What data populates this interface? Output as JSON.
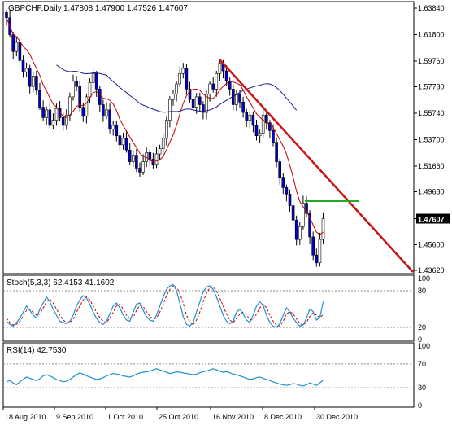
{
  "window": {
    "symbol_timeframe": "GBPCHF,Daily",
    "ohlc": "1.47808 1.47900 1.47526 1.47607"
  },
  "price_panel": {
    "y_ticks": [
      "1.63840",
      "1.61800",
      "1.59760",
      "1.57780",
      "1.55740",
      "1.53700",
      "1.51660",
      "1.49680",
      "1.47607",
      "1.45600",
      "1.43620"
    ],
    "current_price": "1.47607"
  },
  "stoch_panel": {
    "label": "Stoch(5,3,3) 62.4153 41.1602",
    "levels": [
      "100",
      "80",
      "20",
      "0"
    ]
  },
  "rsi_panel": {
    "label": "RSI(14) 42.7530",
    "levels": [
      "100",
      "70",
      "30",
      "0"
    ]
  },
  "x_axis": {
    "labels": [
      "18 Aug 2010",
      "9 Sep 2010",
      "1 Oct 2010",
      "25 Oct 2010",
      "16 Nov 2010",
      "8 Dec 2010",
      "30 Dec 2010"
    ]
  },
  "colors": {
    "up": "#ffffff",
    "down": "#0000c8",
    "wick": "#000000",
    "ma_fast": "#c00000",
    "ma_slow": "#1a1a8c",
    "trendline": "#c81414",
    "hline": "#22aa22",
    "stoch_main": "#1e8fd0",
    "stoch_signal": "#c00000",
    "rsi": "#1e8fd0"
  },
  "chart_data": {
    "type": "candlestick",
    "closes": [
      1.631,
      1.618,
      1.605,
      1.612,
      1.598,
      1.589,
      1.592,
      1.578,
      1.586,
      1.575,
      1.562,
      1.554,
      1.56,
      1.548,
      1.552,
      1.561,
      1.554,
      1.548,
      1.556,
      1.57,
      1.582,
      1.578,
      1.562,
      1.555,
      1.57,
      1.581,
      1.588,
      1.576,
      1.564,
      1.555,
      1.56,
      1.545,
      1.548,
      1.54,
      1.533,
      1.538,
      1.529,
      1.52,
      1.525,
      1.515,
      1.512,
      1.52,
      1.527,
      1.522,
      1.518,
      1.526,
      1.53,
      1.538,
      1.552,
      1.568,
      1.572,
      1.58,
      1.588,
      1.592,
      1.576,
      1.568,
      1.562,
      1.57,
      1.564,
      1.558,
      1.572,
      1.58,
      1.576,
      1.588,
      1.596,
      1.59,
      1.582,
      1.576,
      1.564,
      1.572,
      1.566,
      1.558,
      1.552,
      1.556,
      1.548,
      1.54,
      1.542,
      1.556,
      1.55,
      1.544,
      1.535,
      1.52,
      1.508,
      1.5,
      1.495,
      1.486,
      1.475,
      1.46,
      1.47,
      1.488,
      1.48,
      1.462,
      1.448,
      1.442,
      1.46,
      1.476
    ],
    "stoch_main": [
      30,
      25,
      22,
      28,
      35,
      45,
      55,
      48,
      40,
      35,
      50,
      60,
      70,
      62,
      50,
      40,
      30,
      28,
      26,
      30,
      40,
      55,
      65,
      72,
      68,
      58,
      45,
      35,
      28,
      25,
      30,
      42,
      55,
      60,
      52,
      40,
      32,
      30,
      45,
      58,
      60,
      48,
      38,
      32,
      30,
      40,
      55,
      70,
      82,
      88,
      90,
      80,
      60,
      38,
      25,
      22,
      28,
      45,
      62,
      78,
      86,
      88,
      82,
      70,
      55,
      40,
      30,
      26,
      30,
      45,
      50,
      42,
      32,
      28,
      40,
      55,
      62,
      56,
      40,
      28,
      22,
      20,
      26,
      40,
      52,
      45,
      35,
      28,
      22,
      24,
      35,
      50,
      46,
      32,
      36,
      62
    ],
    "stoch_signal": [
      35,
      28,
      24,
      25,
      30,
      38,
      48,
      50,
      45,
      40,
      42,
      52,
      62,
      66,
      60,
      50,
      40,
      32,
      28,
      28,
      33,
      45,
      55,
      65,
      70,
      65,
      55,
      45,
      36,
      30,
      28,
      35,
      45,
      55,
      58,
      50,
      40,
      34,
      36,
      48,
      56,
      54,
      46,
      38,
      34,
      35,
      45,
      58,
      72,
      82,
      88,
      86,
      76,
      60,
      40,
      28,
      24,
      32,
      45,
      62,
      76,
      85,
      86,
      80,
      68,
      55,
      42,
      32,
      28,
      34,
      42,
      45,
      40,
      33,
      32,
      42,
      52,
      58,
      52,
      40,
      30,
      24,
      22,
      30,
      42,
      46,
      42,
      34,
      26,
      24,
      28,
      38,
      44,
      40,
      36,
      41
    ],
    "rsi": [
      40,
      42,
      38,
      35,
      40,
      44,
      48,
      46,
      44,
      42,
      45,
      50,
      52,
      50,
      47,
      44,
      42,
      40,
      41,
      44,
      48,
      52,
      55,
      53,
      50,
      48,
      46,
      44,
      45,
      47,
      50,
      52,
      54,
      53,
      52,
      50,
      49,
      48,
      50,
      53,
      55,
      56,
      57,
      58,
      60,
      62,
      60,
      58,
      56,
      54,
      55,
      57,
      56,
      55,
      54,
      53,
      52,
      53,
      55,
      57,
      58,
      60,
      62,
      60,
      58,
      56,
      57,
      55,
      53,
      52,
      50,
      48,
      46,
      44,
      45,
      47,
      48,
      46,
      44,
      42,
      40,
      38,
      36,
      35,
      34,
      35,
      37,
      36,
      34,
      33,
      35,
      38,
      36,
      34,
      38,
      43
    ]
  }
}
